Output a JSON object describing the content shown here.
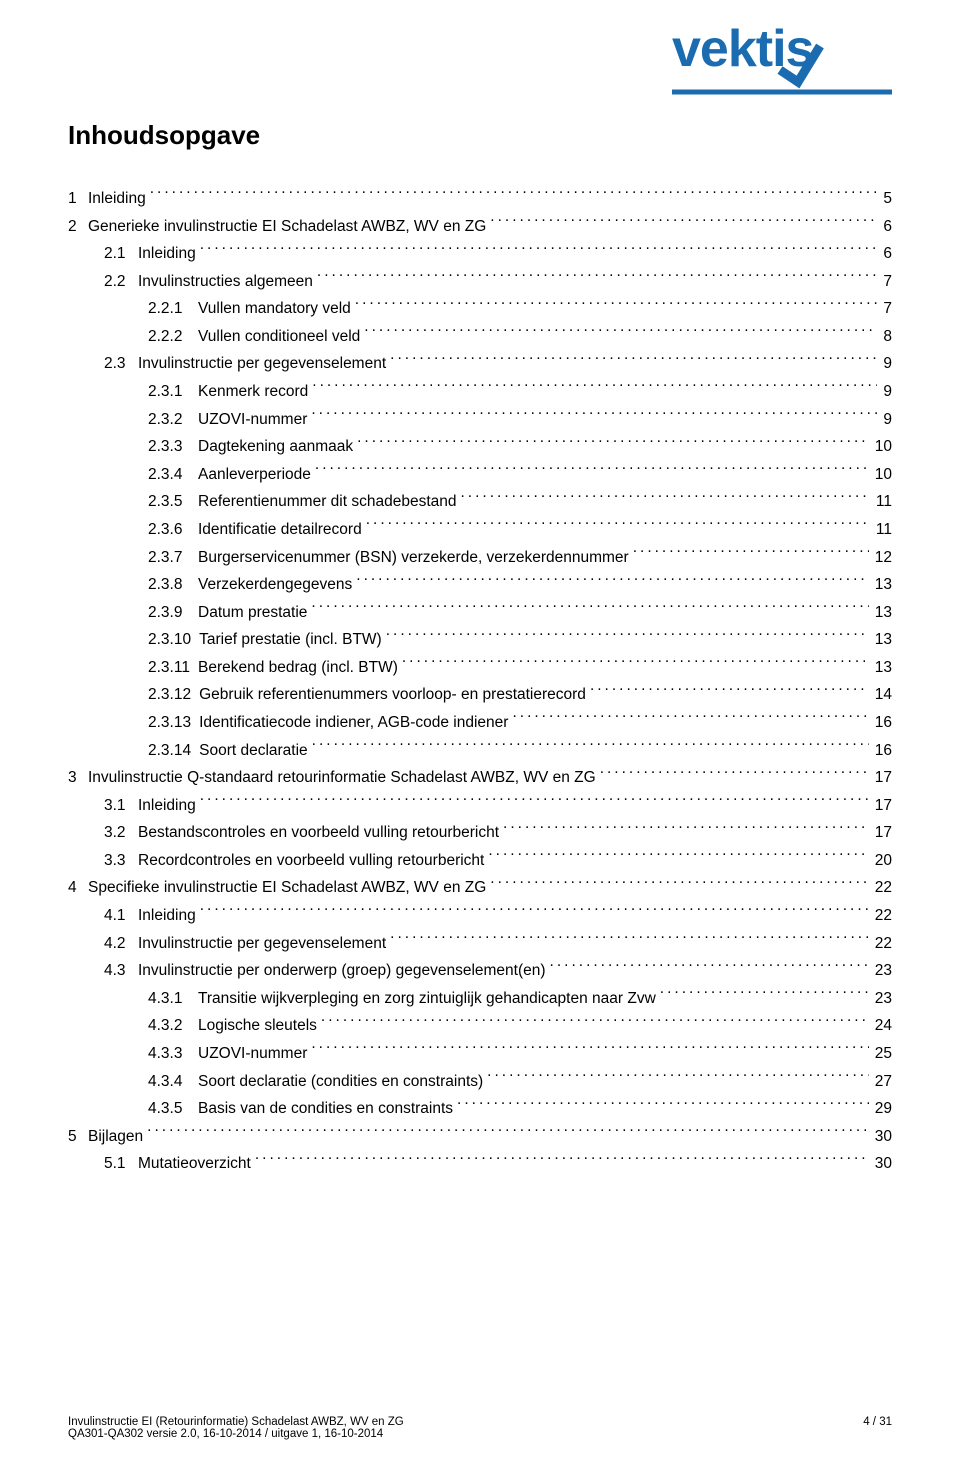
{
  "brand": {
    "name": "vektis",
    "color": "#1a6baf"
  },
  "title": "Inhoudsopgave",
  "toc": [
    {
      "level": 1,
      "num": "1",
      "label": "Inleiding",
      "page": "5"
    },
    {
      "level": 1,
      "num": "2",
      "label": "Generieke invulinstructie EI Schadelast AWBZ, WV en ZG",
      "page": "6"
    },
    {
      "level": 2,
      "num": "2.1",
      "label": "Inleiding",
      "page": "6"
    },
    {
      "level": 2,
      "num": "2.2",
      "label": "Invulinstructies algemeen",
      "page": "7"
    },
    {
      "level": 3,
      "num": "2.2.1",
      "label": "Vullen mandatory veld",
      "page": "7"
    },
    {
      "level": 3,
      "num": "2.2.2",
      "label": "Vullen conditioneel veld",
      "page": "8"
    },
    {
      "level": 2,
      "num": "2.3",
      "label": "Invulinstructie per gegevenselement",
      "page": "9"
    },
    {
      "level": 3,
      "num": "2.3.1",
      "label": "Kenmerk record",
      "page": "9"
    },
    {
      "level": 3,
      "num": "2.3.2",
      "label": "UZOVI-nummer",
      "page": "9"
    },
    {
      "level": 3,
      "num": "2.3.3",
      "label": "Dagtekening aanmaak",
      "page": "10"
    },
    {
      "level": 3,
      "num": "2.3.4",
      "label": "Aanleverperiode",
      "page": "10"
    },
    {
      "level": 3,
      "num": "2.3.5",
      "label": "Referentienummer dit schadebestand",
      "page": "11"
    },
    {
      "level": 3,
      "num": "2.3.6",
      "label": "Identificatie detailrecord",
      "page": "11"
    },
    {
      "level": 3,
      "num": "2.3.7",
      "label": "Burgerservicenummer (BSN) verzekerde, verzekerdennummer",
      "page": "12"
    },
    {
      "level": 3,
      "num": "2.3.8",
      "label": "Verzekerdengegevens",
      "page": "13"
    },
    {
      "level": 3,
      "num": "2.3.9",
      "label": "Datum prestatie",
      "page": "13"
    },
    {
      "level": 3,
      "num": "2.3.10",
      "label": "Tarief prestatie (incl. BTW)",
      "page": "13"
    },
    {
      "level": 3,
      "num": "2.3.11",
      "label": "Berekend bedrag (incl. BTW)",
      "page": "13"
    },
    {
      "level": 3,
      "num": "2.3.12",
      "label": "Gebruik referentienummers voorloop- en prestatierecord",
      "page": "14"
    },
    {
      "level": 3,
      "num": "2.3.13",
      "label": "Identificatiecode indiener, AGB-code indiener",
      "page": "16"
    },
    {
      "level": 3,
      "num": "2.3.14",
      "label": "Soort declaratie",
      "page": "16"
    },
    {
      "level": 1,
      "num": "3",
      "label": "Invulinstructie Q-standaard retourinformatie Schadelast AWBZ, WV en ZG",
      "page": "17"
    },
    {
      "level": 2,
      "num": "3.1",
      "label": "Inleiding",
      "page": "17"
    },
    {
      "level": 2,
      "num": "3.2",
      "label": "Bestandscontroles en voorbeeld vulling retourbericht",
      "page": "17"
    },
    {
      "level": 2,
      "num": "3.3",
      "label": "Recordcontroles en voorbeeld vulling retourbericht",
      "page": "20"
    },
    {
      "level": 1,
      "num": "4",
      "label": "Specifieke invulinstructie EI Schadelast AWBZ, WV en ZG",
      "page": "22"
    },
    {
      "level": 2,
      "num": "4.1",
      "label": "Inleiding",
      "page": "22"
    },
    {
      "level": 2,
      "num": "4.2",
      "label": "Invulinstructie per gegevenselement",
      "page": "22"
    },
    {
      "level": 2,
      "num": "4.3",
      "label": "Invulinstructie per onderwerp (groep) gegevenselement(en)",
      "page": "23"
    },
    {
      "level": 3,
      "num": "4.3.1",
      "label": "Transitie wijkverpleging en zorg zintuiglijk gehandicapten naar Zvw",
      "page": "23"
    },
    {
      "level": 3,
      "num": "4.3.2",
      "label": "Logische sleutels",
      "page": "24"
    },
    {
      "level": 3,
      "num": "4.3.3",
      "label": "UZOVI-nummer",
      "page": "25"
    },
    {
      "level": 3,
      "num": "4.3.4",
      "label": "Soort declaratie (condities en constraints)",
      "page": "27"
    },
    {
      "level": 3,
      "num": "4.3.5",
      "label": "Basis van de condities en constraints",
      "page": "29"
    },
    {
      "level": 1,
      "num": "5",
      "label": "Bijlagen",
      "page": "30"
    },
    {
      "level": 2,
      "num": "5.1",
      "label": "Mutatieoverzicht",
      "page": "30"
    }
  ],
  "footer": {
    "doc_title": "Invulinstructie EI (Retourinformatie) Schadelast AWBZ, WV en ZG",
    "page_indicator": "4 / 31",
    "version_line": "QA301-QA302 versie 2.0, 16-10-2014 / uitgave 1, 16-10-2014"
  }
}
